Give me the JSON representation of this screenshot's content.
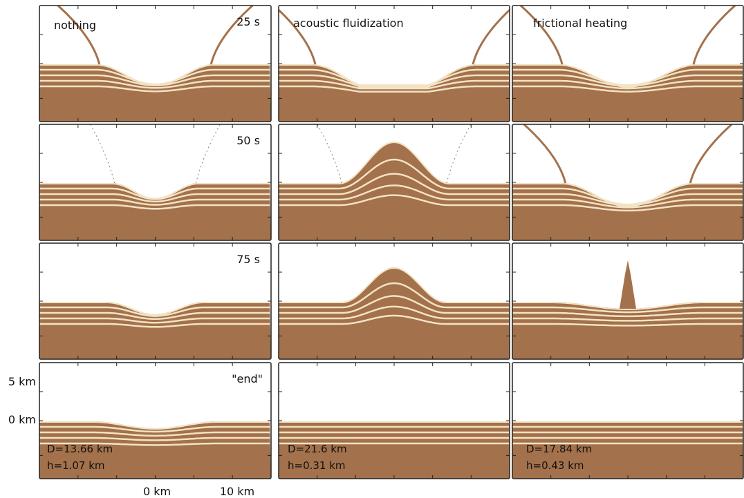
{
  "columns": [
    "nothing",
    "acoustic fluidization",
    "frictional heating"
  ],
  "rows": [
    {
      "time": "25 s"
    },
    {
      "time": "50 s"
    },
    {
      "time": "75 s"
    },
    {
      "time": "\"end\""
    }
  ],
  "y_axis": {
    "labels": [
      "5 km",
      "0 km"
    ]
  },
  "x_axis": {
    "labels": [
      "0 km",
      "10 km"
    ]
  },
  "annotations": [
    {
      "D": "D=13.66 km",
      "h": "h=1.07 km"
    },
    {
      "D": "D=21.6 km",
      "h": "h=0.31 km"
    },
    {
      "D": "D=17.84 km",
      "h": "h=0.43 km"
    }
  ]
}
